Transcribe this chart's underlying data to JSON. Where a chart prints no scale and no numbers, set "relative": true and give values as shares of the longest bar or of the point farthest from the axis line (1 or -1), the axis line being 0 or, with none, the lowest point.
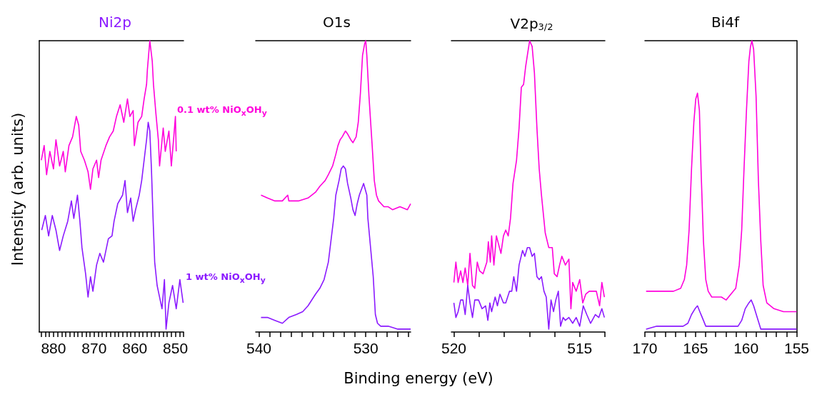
{
  "chart_data": [
    {
      "type": "line",
      "title": "Ni2p",
      "ylabel": "Intensity (arb. units)",
      "relative": true,
      "tick_labels": "x",
      "legend": false,
      "grid": false,
      "marker": "none",
      "line_style": "solid",
      "xlim": [
        883.5,
        848
      ],
      "xticks": [
        {
          "value": 848,
          "label": null
        },
        {
          "value": 849,
          "label": null
        },
        850,
        {
          "value": 851,
          "label": null
        },
        {
          "value": 852,
          "label": null
        },
        {
          "value": 853,
          "label": null
        },
        {
          "value": 854,
          "label": null
        },
        {
          "value": 855,
          "label": null
        },
        {
          "value": 856,
          "label": null
        },
        {
          "value": 857,
          "label": null
        },
        {
          "value": 858,
          "label": null
        },
        {
          "value": 859,
          "label": null
        },
        860,
        {
          "value": 861,
          "label": null
        },
        {
          "value": 862,
          "label": null
        },
        {
          "value": 863,
          "label": null
        },
        {
          "value": 864,
          "label": null
        },
        {
          "value": 865,
          "label": null
        },
        {
          "value": 866,
          "label": null
        },
        {
          "value": 867,
          "label": null
        },
        {
          "value": 868,
          "label": null
        },
        {
          "value": 869,
          "label": null
        },
        870,
        {
          "value": 871,
          "label": null
        },
        {
          "value": 872,
          "label": null
        },
        {
          "value": 873,
          "label": null
        },
        {
          "value": 874,
          "label": null
        },
        {
          "value": 875,
          "label": null
        },
        {
          "value": 876,
          "label": null
        },
        {
          "value": 877,
          "label": null
        },
        {
          "value": 878,
          "label": null
        },
        {
          "value": 879,
          "label": null
        },
        880,
        {
          "value": 881,
          "label": null
        },
        {
          "value": 882,
          "label": null
        },
        {
          "value": 883,
          "label": null
        }
      ],
      "series": [
        {
          "name": "0.1 wt% NiO$_{x}$OH$_{y}$",
          "color": "#ff00dc",
          "x": [
            883.0,
            882.3,
            881.7,
            880.9,
            880.0,
            879.4,
            878.5,
            877.6,
            877.1,
            876.2,
            875.3,
            874.4,
            873.8,
            873.3,
            872.4,
            871.5,
            870.9,
            870.3,
            869.4,
            868.9,
            868.3,
            867.1,
            866.2,
            865.3,
            864.5,
            863.6,
            862.7,
            861.8,
            861.2,
            860.4,
            860.1,
            859.2,
            858.3,
            857.7,
            857.1,
            856.9,
            856.3,
            855.7,
            855.4,
            854.8,
            854.2,
            853.9,
            853.0,
            852.5,
            851.6,
            851.0,
            850.4,
            850.0,
            849.8
          ],
          "values": [
            0.59,
            0.64,
            0.54,
            0.62,
            0.56,
            0.66,
            0.57,
            0.62,
            0.55,
            0.64,
            0.67,
            0.74,
            0.71,
            0.62,
            0.59,
            0.55,
            0.49,
            0.56,
            0.59,
            0.53,
            0.59,
            0.64,
            0.67,
            0.69,
            0.74,
            0.78,
            0.72,
            0.8,
            0.74,
            0.76,
            0.64,
            0.72,
            0.74,
            0.8,
            0.85,
            0.9,
            1.0,
            0.93,
            0.85,
            0.75,
            0.66,
            0.57,
            0.7,
            0.62,
            0.69,
            0.57,
            0.67,
            0.74,
            0.62
          ]
        },
        {
          "name": "1 wt% NiO$_{x}$OH$_{y}$",
          "color": "#8b1aff",
          "x": [
            882.9,
            882.0,
            881.2,
            880.3,
            879.4,
            878.5,
            877.6,
            876.5,
            875.6,
            875.0,
            874.1,
            873.5,
            873.0,
            872.1,
            871.5,
            870.9,
            870.3,
            869.4,
            868.6,
            867.7,
            866.5,
            865.6,
            865.1,
            864.2,
            863.0,
            862.4,
            861.8,
            861.0,
            860.4,
            859.8,
            858.9,
            858.3,
            857.7,
            857.1,
            856.7,
            856.3,
            855.9,
            855.5,
            855.1,
            854.5,
            853.9,
            853.3,
            852.7,
            852.3,
            851.6,
            850.7,
            849.8,
            848.9,
            848.1
          ],
          "values": [
            0.35,
            0.4,
            0.33,
            0.4,
            0.35,
            0.28,
            0.33,
            0.38,
            0.45,
            0.39,
            0.47,
            0.38,
            0.29,
            0.2,
            0.12,
            0.19,
            0.14,
            0.23,
            0.27,
            0.24,
            0.32,
            0.33,
            0.38,
            0.44,
            0.47,
            0.52,
            0.41,
            0.46,
            0.38,
            0.42,
            0.47,
            0.52,
            0.59,
            0.66,
            0.72,
            0.69,
            0.56,
            0.39,
            0.24,
            0.16,
            0.12,
            0.08,
            0.18,
            0.01,
            0.1,
            0.16,
            0.08,
            0.18,
            0.1
          ]
        }
      ]
    },
    {
      "type": "line",
      "title": "O1s",
      "xlabel": "Binding energy (eV)",
      "relative": true,
      "tick_labels": "x",
      "legend": false,
      "grid": false,
      "marker": "none",
      "line_style": "solid",
      "xlim": [
        540.3,
        525.8
      ],
      "xticks": [
        {
          "value": 526,
          "label": null
        },
        {
          "value": 527,
          "label": null
        },
        {
          "value": 528,
          "label": null
        },
        {
          "value": 529,
          "label": null
        },
        530,
        {
          "value": 531,
          "label": null
        },
        {
          "value": 532,
          "label": null
        },
        {
          "value": 533,
          "label": null
        },
        {
          "value": 534,
          "label": null
        },
        {
          "value": 535,
          "label": null
        },
        {
          "value": 536,
          "label": null
        },
        {
          "value": 537,
          "label": null
        },
        {
          "value": 538,
          "label": null
        },
        {
          "value": 539,
          "label": null
        },
        540
      ],
      "series": [
        {
          "color": "#ff00dc",
          "x": [
            539.8,
            539.2,
            538.5,
            537.8,
            537.3,
            537.2,
            536.3,
            535.4,
            534.7,
            534.3,
            533.8,
            533.5,
            533.1,
            532.8,
            532.6,
            532.4,
            532.2,
            531.9,
            531.7,
            531.4,
            531.2,
            530.9,
            530.7,
            530.5,
            530.3,
            530.1,
            530.0,
            529.9,
            529.7,
            529.4,
            529.2,
            529.0,
            528.8,
            528.3,
            527.9,
            527.5,
            526.8,
            526.1,
            525.8
          ],
          "values": [
            0.47,
            0.46,
            0.45,
            0.45,
            0.47,
            0.45,
            0.45,
            0.46,
            0.48,
            0.5,
            0.52,
            0.54,
            0.57,
            0.61,
            0.64,
            0.66,
            0.67,
            0.69,
            0.68,
            0.66,
            0.65,
            0.67,
            0.72,
            0.82,
            0.95,
            0.99,
            1.0,
            0.95,
            0.81,
            0.64,
            0.52,
            0.47,
            0.45,
            0.43,
            0.43,
            0.42,
            0.43,
            0.42,
            0.44
          ]
        },
        {
          "color": "#8b1aff",
          "x": [
            539.8,
            539.2,
            538.5,
            537.8,
            537.2,
            536.5,
            535.9,
            535.4,
            534.7,
            534.3,
            533.9,
            533.5,
            533.2,
            533.0,
            532.8,
            532.5,
            532.3,
            532.1,
            531.9,
            531.7,
            531.4,
            531.2,
            531.0,
            530.8,
            530.6,
            530.3,
            530.2,
            529.9,
            529.8,
            529.6,
            529.3,
            529.1,
            528.9,
            528.6,
            527.9,
            527.0,
            526.1,
            525.8
          ],
          "values": [
            0.05,
            0.05,
            0.04,
            0.03,
            0.05,
            0.06,
            0.07,
            0.09,
            0.13,
            0.15,
            0.18,
            0.24,
            0.33,
            0.39,
            0.47,
            0.52,
            0.56,
            0.57,
            0.56,
            0.51,
            0.46,
            0.42,
            0.4,
            0.44,
            0.47,
            0.5,
            0.51,
            0.47,
            0.39,
            0.31,
            0.19,
            0.06,
            0.03,
            0.02,
            0.02,
            0.01,
            0.01,
            0.01
          ]
        }
      ]
    },
    {
      "type": "line",
      "title": "V2p$_{3/2}$",
      "relative": true,
      "tick_labels": "x",
      "legend": false,
      "grid": false,
      "marker": "none",
      "line_style": "solid",
      "xlim": [
        520.1,
        514
      ],
      "xticks": [
        {
          "value": 514,
          "label": null
        },
        515,
        {
          "value": 516,
          "label": null
        },
        {
          "value": 517,
          "label": null
        },
        {
          "value": 518,
          "label": null
        },
        {
          "value": 519,
          "label": null
        },
        520
      ],
      "series": [
        {
          "color": "#ff00dc",
          "x": [
            520.0,
            519.92,
            519.83,
            519.73,
            519.64,
            519.55,
            519.45,
            519.36,
            519.26,
            519.17,
            519.07,
            518.98,
            518.84,
            518.69,
            518.63,
            518.55,
            518.5,
            518.41,
            518.31,
            518.22,
            518.13,
            518.03,
            517.94,
            517.84,
            517.75,
            517.65,
            517.51,
            517.41,
            517.32,
            517.23,
            517.15,
            517.08,
            516.99,
            516.89,
            516.8,
            516.7,
            516.61,
            516.52,
            516.37,
            516.23,
            516.09,
            516.01,
            515.9,
            515.8,
            515.71,
            515.57,
            515.43,
            515.35,
            515.28,
            515.14,
            515.0,
            514.88,
            514.76,
            514.62,
            514.48,
            514.34,
            514.21,
            514.12,
            514.02
          ],
          "values": [
            0.17,
            0.24,
            0.17,
            0.21,
            0.17,
            0.22,
            0.16,
            0.27,
            0.16,
            0.15,
            0.24,
            0.21,
            0.2,
            0.24,
            0.31,
            0.24,
            0.33,
            0.23,
            0.33,
            0.3,
            0.27,
            0.33,
            0.35,
            0.33,
            0.39,
            0.51,
            0.59,
            0.7,
            0.84,
            0.85,
            0.91,
            0.95,
            1.0,
            0.98,
            0.89,
            0.7,
            0.56,
            0.47,
            0.34,
            0.29,
            0.29,
            0.2,
            0.19,
            0.23,
            0.26,
            0.23,
            0.25,
            0.08,
            0.17,
            0.14,
            0.18,
            0.1,
            0.13,
            0.14,
            0.14,
            0.14,
            0.09,
            0.17,
            0.12
          ]
        },
        {
          "color": "#8b1aff",
          "x": [
            520.0,
            519.92,
            519.83,
            519.73,
            519.64,
            519.55,
            519.45,
            519.36,
            519.26,
            519.17,
            519.02,
            518.88,
            518.74,
            518.65,
            518.57,
            518.5,
            518.36,
            518.27,
            518.17,
            518.03,
            517.94,
            517.79,
            517.7,
            517.62,
            517.51,
            517.41,
            517.27,
            517.18,
            517.08,
            516.99,
            516.89,
            516.8,
            516.7,
            516.61,
            516.52,
            516.42,
            516.33,
            516.23,
            516.14,
            516.04,
            515.95,
            515.85,
            515.76,
            515.66,
            515.57,
            515.43,
            515.28,
            515.14,
            515.0,
            514.86,
            514.72,
            514.57,
            514.38,
            514.24,
            514.12,
            514.02
          ],
          "values": [
            0.1,
            0.05,
            0.07,
            0.11,
            0.11,
            0.06,
            0.16,
            0.1,
            0.05,
            0.11,
            0.11,
            0.08,
            0.09,
            0.04,
            0.1,
            0.07,
            0.12,
            0.09,
            0.13,
            0.1,
            0.1,
            0.14,
            0.14,
            0.19,
            0.14,
            0.23,
            0.28,
            0.26,
            0.29,
            0.29,
            0.26,
            0.27,
            0.19,
            0.18,
            0.19,
            0.14,
            0.12,
            0.01,
            0.11,
            0.07,
            0.11,
            0.14,
            0.02,
            0.05,
            0.04,
            0.05,
            0.03,
            0.05,
            0.02,
            0.09,
            0.06,
            0.03,
            0.06,
            0.05,
            0.08,
            0.05
          ]
        }
      ]
    },
    {
      "type": "line",
      "title": "Bi4f",
      "relative": true,
      "tick_labels": "x",
      "legend": false,
      "grid": false,
      "marker": "none",
      "line_style": "solid",
      "xlim": [
        170,
        155
      ],
      "xticks": [
        155,
        {
          "value": 156,
          "label": null
        },
        {
          "value": 157,
          "label": null
        },
        {
          "value": 158,
          "label": null
        },
        {
          "value": 159,
          "label": null
        },
        160,
        {
          "value": 161,
          "label": null
        },
        {
          "value": 162,
          "label": null
        },
        {
          "value": 163,
          "label": null
        },
        {
          "value": 164,
          "label": null
        },
        165,
        {
          "value": 166,
          "label": null
        },
        {
          "value": 167,
          "label": null
        },
        {
          "value": 168,
          "label": null
        },
        {
          "value": 169,
          "label": null
        },
        170
      ],
      "series": [
        {
          "color": "#ff00dc",
          "x": [
            169.88,
            169.06,
            168.11,
            167.17,
            166.46,
            166.1,
            165.87,
            165.63,
            165.39,
            165.16,
            164.97,
            164.8,
            164.61,
            164.45,
            164.21,
            163.98,
            163.74,
            163.39,
            162.44,
            161.97,
            161.5,
            161.02,
            160.67,
            160.43,
            160.2,
            159.96,
            159.72,
            159.56,
            159.42,
            159.25,
            159.01,
            158.78,
            158.54,
            158.31,
            157.95,
            157.24,
            156.3,
            155.35,
            155.0
          ],
          "values": [
            0.14,
            0.14,
            0.14,
            0.14,
            0.15,
            0.18,
            0.23,
            0.35,
            0.56,
            0.72,
            0.8,
            0.82,
            0.76,
            0.56,
            0.31,
            0.18,
            0.14,
            0.12,
            0.12,
            0.11,
            0.13,
            0.15,
            0.23,
            0.35,
            0.56,
            0.76,
            0.93,
            0.98,
            1.0,
            0.97,
            0.81,
            0.52,
            0.31,
            0.16,
            0.1,
            0.08,
            0.07,
            0.07,
            0.07
          ]
        },
        {
          "color": "#8b1aff",
          "x": [
            169.88,
            168.82,
            167.99,
            167.17,
            166.22,
            165.75,
            165.39,
            165.04,
            164.8,
            164.57,
            164.33,
            163.98,
            163.39,
            162.44,
            161.5,
            160.79,
            160.43,
            160.08,
            159.72,
            159.49,
            159.25,
            158.9,
            158.54,
            157.71,
            156.53,
            155.0
          ],
          "values": [
            0.01,
            0.02,
            0.02,
            0.02,
            0.02,
            0.03,
            0.06,
            0.08,
            0.09,
            0.07,
            0.05,
            0.02,
            0.02,
            0.02,
            0.02,
            0.02,
            0.04,
            0.08,
            0.1,
            0.11,
            0.09,
            0.05,
            0.01,
            0.01,
            0.01,
            0.01
          ]
        }
      ]
    }
  ]
}
